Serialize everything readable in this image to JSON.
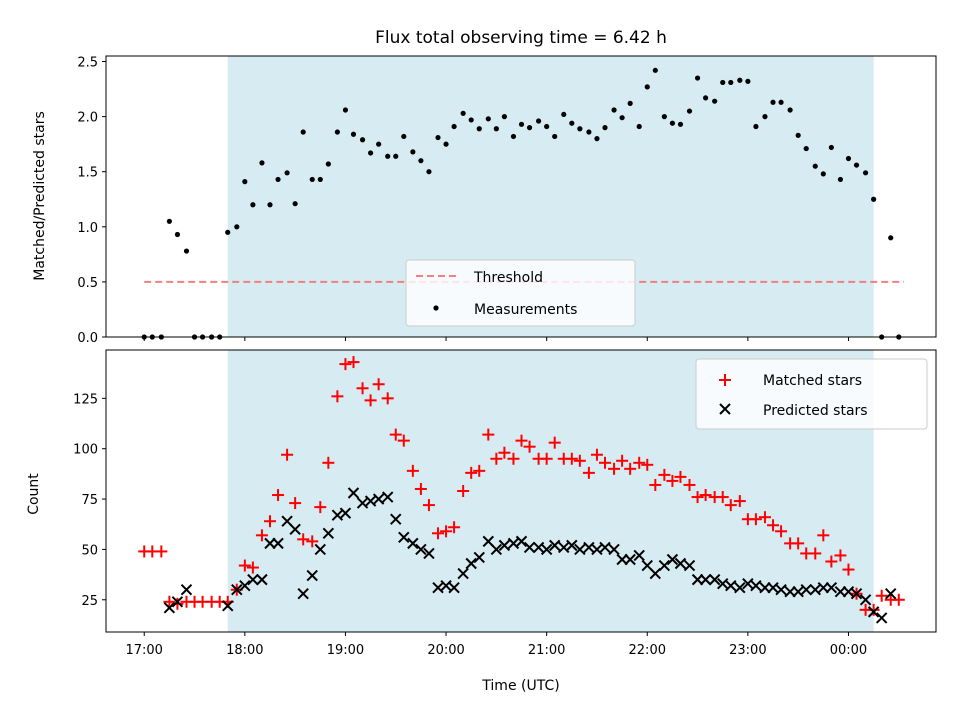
{
  "title": "Flux total observing time = 6.42 h",
  "colors": {
    "observing_span": "#add8e6",
    "threshold": "#f08080",
    "measurement": "#000000",
    "matched": "#ff0000",
    "predicted": "#000000"
  },
  "chart_data": [
    {
      "type": "scatter",
      "panel": "top",
      "title": "Flux total observing time = 6.42 h",
      "ylabel": "Matched/Predicted stars",
      "x_unit": "hours UTC (wrapping past midnight)",
      "xlim": [
        16.62,
        24.87
      ],
      "ylim": [
        0,
        2.55
      ],
      "yticks": [
        "0.0",
        "0.5",
        "1.0",
        "1.5",
        "2.0",
        "2.5"
      ],
      "ytick_values": [
        0,
        0.5,
        1.0,
        1.5,
        2.0,
        2.5
      ],
      "observing_span": [
        17.83,
        24.25
      ],
      "threshold": {
        "label": "Threshold",
        "value": 0.5,
        "x": [
          17.0,
          24.55
        ]
      },
      "legend": {
        "position": "lower-center",
        "entries": [
          "Threshold",
          "Measurements"
        ]
      },
      "series": [
        {
          "name": "Measurements",
          "x": [
            17.0,
            17.08,
            17.17,
            17.25,
            17.33,
            17.42,
            17.5,
            17.58,
            17.67,
            17.75,
            17.83,
            17.92,
            18.0,
            18.08,
            18.17,
            18.25,
            18.33,
            18.42,
            18.5,
            18.58,
            18.67,
            18.75,
            18.83,
            18.92,
            19.0,
            19.08,
            19.17,
            19.25,
            19.33,
            19.42,
            19.5,
            19.58,
            19.67,
            19.75,
            19.83,
            19.92,
            20.0,
            20.08,
            20.17,
            20.25,
            20.33,
            20.42,
            20.5,
            20.58,
            20.67,
            20.75,
            20.83,
            20.92,
            21.0,
            21.08,
            21.17,
            21.25,
            21.33,
            21.42,
            21.5,
            21.58,
            21.67,
            21.75,
            21.83,
            21.92,
            22.0,
            22.08,
            22.17,
            22.25,
            22.33,
            22.42,
            22.5,
            22.58,
            22.67,
            22.75,
            22.83,
            22.92,
            23.0,
            23.08,
            23.17,
            23.25,
            23.33,
            23.42,
            23.5,
            23.58,
            23.67,
            23.75,
            23.83,
            23.92,
            24.0,
            24.08,
            24.17,
            24.25,
            24.33,
            24.42,
            24.5
          ],
          "y": [
            0.0,
            0.0,
            0.0,
            1.05,
            0.93,
            0.78,
            0.0,
            0.0,
            0.0,
            0.0,
            0.95,
            1.0,
            1.41,
            1.2,
            1.58,
            1.2,
            1.43,
            1.49,
            1.21,
            1.86,
            1.43,
            1.43,
            1.57,
            1.86,
            2.06,
            1.84,
            1.79,
            1.67,
            1.75,
            1.64,
            1.64,
            1.82,
            1.68,
            1.6,
            1.5,
            1.81,
            1.75,
            1.91,
            2.03,
            1.97,
            1.89,
            1.98,
            1.89,
            2.0,
            1.82,
            1.93,
            1.9,
            1.96,
            1.91,
            1.82,
            2.02,
            1.94,
            1.89,
            1.86,
            1.8,
            1.9,
            2.06,
            1.99,
            2.12,
            1.91,
            2.27,
            2.42,
            2.0,
            1.94,
            1.93,
            2.05,
            2.35,
            2.17,
            2.14,
            2.31,
            2.31,
            2.33,
            2.32,
            1.91,
            2.0,
            2.13,
            2.13,
            2.06,
            1.83,
            1.71,
            1.55,
            1.48,
            1.72,
            1.43,
            1.62,
            1.56,
            1.49,
            1.25,
            0.0,
            0.9,
            0.0
          ]
        }
      ]
    },
    {
      "type": "scatter",
      "panel": "bottom",
      "xlabel": "Time (UTC)",
      "ylabel": "Count",
      "x_unit": "hours UTC (wrapping past midnight)",
      "xlim": [
        16.62,
        24.87
      ],
      "ylim": [
        9,
        149
      ],
      "xticks": [
        "17:00",
        "18:00",
        "19:00",
        "20:00",
        "21:00",
        "22:00",
        "23:00",
        "00:00"
      ],
      "xtick_values": [
        17,
        18,
        19,
        20,
        21,
        22,
        23,
        24
      ],
      "yticks": [
        "25",
        "50",
        "75",
        "100",
        "125"
      ],
      "ytick_values": [
        25,
        50,
        75,
        100,
        125
      ],
      "observing_span": [
        17.83,
        24.25
      ],
      "legend": {
        "position": "top-right",
        "entries": [
          "Matched stars",
          "Predicted stars"
        ]
      },
      "series": [
        {
          "name": "Matched stars",
          "marker": "plus",
          "x": [
            17.0,
            17.08,
            17.17,
            17.25,
            17.33,
            17.42,
            17.5,
            17.58,
            17.67,
            17.75,
            17.83,
            17.92,
            18.0,
            18.08,
            18.17,
            18.25,
            18.33,
            18.42,
            18.5,
            18.58,
            18.67,
            18.75,
            18.83,
            18.92,
            19.0,
            19.08,
            19.17,
            19.25,
            19.33,
            19.42,
            19.5,
            19.58,
            19.67,
            19.75,
            19.83,
            19.92,
            20.0,
            20.08,
            20.17,
            20.25,
            20.33,
            20.42,
            20.5,
            20.58,
            20.67,
            20.75,
            20.83,
            20.92,
            21.0,
            21.08,
            21.17,
            21.25,
            21.33,
            21.42,
            21.5,
            21.58,
            21.67,
            21.75,
            21.83,
            21.92,
            22.0,
            22.08,
            22.17,
            22.25,
            22.33,
            22.42,
            22.5,
            22.58,
            22.67,
            22.75,
            22.83,
            22.92,
            23.0,
            23.08,
            23.17,
            23.25,
            23.33,
            23.42,
            23.5,
            23.58,
            23.67,
            23.75,
            23.83,
            23.92,
            24.0,
            24.08,
            24.17,
            24.25,
            24.33,
            24.42,
            24.5
          ],
          "y": [
            49,
            49,
            49,
            24,
            23,
            24,
            24,
            24,
            24,
            24,
            24,
            30,
            42,
            41,
            57,
            64,
            77,
            97,
            73,
            55,
            54,
            71,
            93,
            126,
            142,
            143,
            130,
            124,
            132,
            125,
            107,
            104,
            89,
            80,
            72,
            58,
            59,
            61,
            79,
            88,
            89,
            107,
            95,
            98,
            95,
            104,
            101,
            95,
            95,
            103,
            95,
            95,
            94,
            88,
            97,
            93,
            90,
            94,
            90,
            93,
            92,
            82,
            87,
            84,
            86,
            82,
            76,
            77,
            76,
            76,
            72,
            74,
            65,
            65,
            66,
            62,
            59,
            53,
            53,
            48,
            48,
            57,
            44,
            47,
            40,
            28,
            20,
            20,
            27,
            25,
            25
          ]
        },
        {
          "name": "Predicted stars",
          "marker": "x",
          "x": [
            17.25,
            17.33,
            17.42,
            17.83,
            17.92,
            18.0,
            18.08,
            18.17,
            18.25,
            18.33,
            18.42,
            18.5,
            18.58,
            18.67,
            18.75,
            18.83,
            18.92,
            19.0,
            19.08,
            19.17,
            19.25,
            19.33,
            19.42,
            19.5,
            19.58,
            19.67,
            19.75,
            19.83,
            19.92,
            20.0,
            20.08,
            20.17,
            20.25,
            20.33,
            20.42,
            20.5,
            20.58,
            20.67,
            20.75,
            20.83,
            20.92,
            21.0,
            21.08,
            21.17,
            21.25,
            21.33,
            21.42,
            21.5,
            21.58,
            21.67,
            21.75,
            21.83,
            21.92,
            22.0,
            22.08,
            22.17,
            22.25,
            22.33,
            22.42,
            22.5,
            22.58,
            22.67,
            22.75,
            22.83,
            22.92,
            23.0,
            23.08,
            23.17,
            23.25,
            23.33,
            23.42,
            23.5,
            23.58,
            23.67,
            23.75,
            23.83,
            23.92,
            24.0,
            24.08,
            24.17,
            24.25,
            24.33,
            24.42
          ],
          "y": [
            21,
            24,
            30,
            22,
            30,
            32,
            35,
            35,
            53,
            53,
            64,
            60,
            28,
            37,
            50,
            58,
            67,
            68,
            78,
            73,
            74,
            75,
            76,
            65,
            56,
            53,
            50,
            48,
            31,
            32,
            31,
            38,
            43,
            46,
            54,
            50,
            52,
            53,
            54,
            51,
            51,
            50,
            52,
            51,
            52,
            50,
            51,
            50,
            51,
            50,
            45,
            45,
            47,
            42,
            38,
            42,
            45,
            43,
            42,
            35,
            35,
            35,
            33,
            32,
            31,
            33,
            32,
            31,
            31,
            30,
            29,
            29,
            30,
            30,
            31,
            31,
            29,
            29,
            28,
            25,
            19,
            16,
            28
          ]
        }
      ]
    }
  ]
}
